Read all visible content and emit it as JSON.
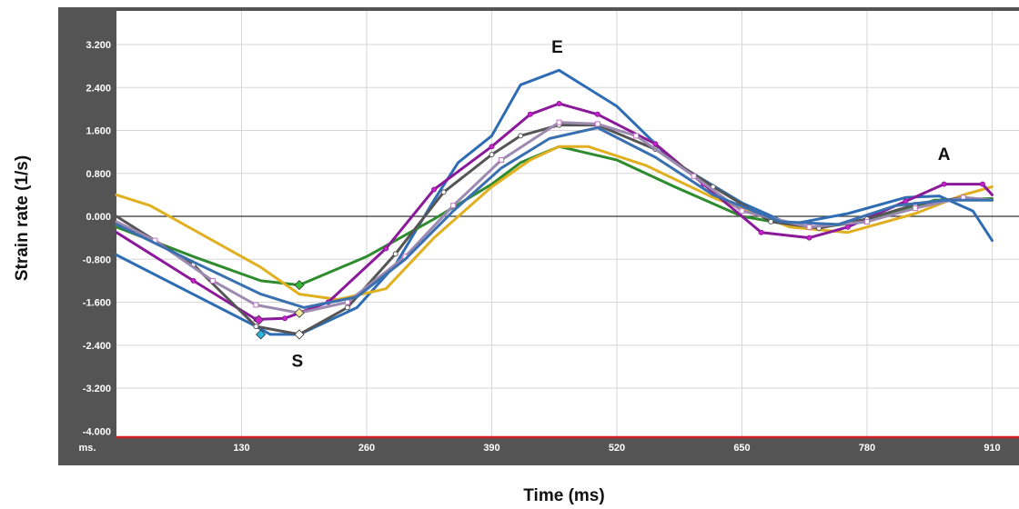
{
  "chart_data": {
    "type": "line",
    "xlabel": "Time (ms)",
    "ylabel": "Strain rate (1/s)",
    "x_unit_label": "ms.",
    "xlim": [
      0,
      910
    ],
    "ylim": [
      -4.0,
      3.4
    ],
    "x_ticks": [
      130,
      260,
      390,
      520,
      650,
      780,
      910
    ],
    "y_ticks": [
      3.2,
      2.4,
      1.6,
      0.8,
      0.0,
      -0.8,
      -1.6,
      -2.4,
      -3.2,
      -4.0
    ],
    "y_tick_labels": [
      "3.200",
      "2.400",
      "1.600",
      "0.800",
      "0.000",
      "-0.800",
      "-1.600",
      "-2.400",
      "-3.200",
      "-4.000"
    ],
    "grid": true,
    "annotations": [
      {
        "text": "E",
        "x": 458,
        "y": 3.05
      },
      {
        "text": "S",
        "x": 188,
        "y": -2.8
      },
      {
        "text": "A",
        "x": 860,
        "y": 1.05
      }
    ],
    "series": [
      {
        "color": "#2e6db4",
        "x": [
          0,
          145,
          160,
          190,
          250,
          290,
          330,
          355,
          390,
          420,
          460,
          520,
          580,
          650,
          700,
          760,
          820,
          855,
          890,
          910
        ],
        "y": [
          -0.72,
          -2.05,
          -2.2,
          -2.2,
          -1.7,
          -0.9,
          0.3,
          1.0,
          1.5,
          2.45,
          2.72,
          2.05,
          1.0,
          0.25,
          -0.15,
          0.05,
          0.35,
          0.38,
          0.1,
          -0.45
        ]
      },
      {
        "color": "#2e8b2e",
        "x": [
          0,
          80,
          150,
          190,
          260,
          330,
          390,
          420,
          460,
          520,
          580,
          650,
          720,
          780,
          850,
          910
        ],
        "y": [
          -0.2,
          -0.75,
          -1.2,
          -1.28,
          -0.75,
          -0.05,
          0.6,
          1.0,
          1.3,
          1.05,
          0.55,
          0.0,
          -0.22,
          -0.1,
          0.3,
          0.33
        ]
      },
      {
        "color": "#e0b020",
        "x": [
          0,
          35,
          100,
          150,
          190,
          230,
          280,
          330,
          390,
          430,
          460,
          490,
          550,
          620,
          700,
          760,
          830,
          880,
          910
        ],
        "y": [
          0.4,
          0.2,
          -0.45,
          -0.95,
          -1.45,
          -1.55,
          -1.35,
          -0.4,
          0.55,
          1.05,
          1.3,
          1.3,
          0.95,
          0.35,
          -0.2,
          -0.3,
          0.05,
          0.4,
          0.55
        ]
      },
      {
        "color": "#8b1a9a",
        "marker": "circle",
        "marker_color": "#cc22cc",
        "x": [
          0,
          80,
          145,
          175,
          220,
          280,
          330,
          390,
          430,
          460,
          500,
          560,
          610,
          670,
          720,
          760,
          820,
          860,
          900,
          910
        ],
        "y": [
          -0.3,
          -1.2,
          -1.92,
          -1.9,
          -1.6,
          -0.6,
          0.5,
          1.3,
          1.9,
          2.1,
          1.9,
          1.35,
          0.6,
          -0.3,
          -0.4,
          -0.2,
          0.28,
          0.6,
          0.6,
          0.4
        ]
      },
      {
        "color": "#555555",
        "marker": "circle",
        "marker_color": "#ffffff",
        "x": [
          0,
          80,
          145,
          190,
          240,
          290,
          340,
          390,
          420,
          460,
          500,
          560,
          620,
          680,
          730,
          780,
          830,
          880,
          910
        ],
        "y": [
          0.0,
          -0.9,
          -2.05,
          -2.2,
          -1.7,
          -0.7,
          0.45,
          1.15,
          1.5,
          1.7,
          1.7,
          1.25,
          0.55,
          -0.1,
          -0.22,
          -0.05,
          0.22,
          0.35,
          0.3
        ]
      },
      {
        "color": "#9c8ab0",
        "marker": "square",
        "marker_color": "#ffffff",
        "x": [
          0,
          40,
          100,
          145,
          190,
          240,
          300,
          350,
          400,
          460,
          500,
          540,
          600,
          650,
          720,
          780,
          830,
          880,
          910
        ],
        "y": [
          -0.1,
          -0.45,
          -1.2,
          -1.65,
          -1.8,
          -1.6,
          -0.75,
          0.2,
          1.05,
          1.75,
          1.72,
          1.5,
          0.75,
          0.1,
          -0.2,
          -0.1,
          0.15,
          0.35,
          0.3
        ]
      },
      {
        "color": "#3a6fb0",
        "x": [
          0,
          80,
          150,
          195,
          250,
          300,
          350,
          400,
          450,
          500,
          560,
          620,
          690,
          750,
          810,
          860,
          910
        ],
        "y": [
          -0.15,
          -0.85,
          -1.45,
          -1.7,
          -1.5,
          -0.8,
          0.1,
          0.9,
          1.45,
          1.65,
          1.1,
          0.4,
          -0.1,
          -0.15,
          0.2,
          0.3,
          0.3
        ]
      }
    ],
    "highlight_markers": [
      {
        "x": 150,
        "y": -2.2,
        "color": "#27b8e0"
      },
      {
        "x": 148,
        "y": -1.93,
        "color": "#cc22cc"
      },
      {
        "x": 190,
        "y": -1.28,
        "color": "#33bb33"
      },
      {
        "x": 190,
        "y": -1.8,
        "color": "#f0e6a0"
      },
      {
        "x": 190,
        "y": -2.2,
        "color": "#ffffff"
      }
    ]
  }
}
